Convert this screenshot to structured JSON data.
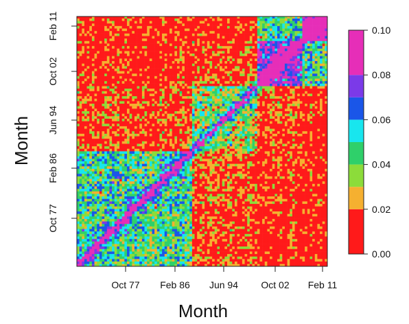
{
  "chart_data": {
    "type": "heatmap",
    "title": "",
    "xlabel": "Month",
    "ylabel": "Month",
    "x_ticks": [
      "Oct 77",
      "Feb 86",
      "Jun 94",
      "Oct 02",
      "Feb 11"
    ],
    "y_ticks": [
      "Oct 77",
      "Feb 86",
      "Jun 94",
      "Oct 02",
      "Feb 11"
    ],
    "color_scale": {
      "range": [
        0,
        0.1
      ],
      "ticks": [
        "0.00",
        "0.02",
        "0.04",
        "0.06",
        "0.08",
        "0.10"
      ],
      "bins": [
        {
          "from": 0.0,
          "to": 0.02,
          "color": "#ff1a1a"
        },
        {
          "from": 0.02,
          "to": 0.03,
          "color": "#f5b030"
        },
        {
          "from": 0.03,
          "to": 0.04,
          "color": "#8cdc3a"
        },
        {
          "from": 0.04,
          "to": 0.05,
          "color": "#2fd06a"
        },
        {
          "from": 0.05,
          "to": 0.06,
          "color": "#18e6ee"
        },
        {
          "from": 0.06,
          "to": 0.07,
          "color": "#1a56e8"
        },
        {
          "from": 0.07,
          "to": 0.08,
          "color": "#7b3ae8"
        },
        {
          "from": 0.08,
          "to": 0.1,
          "color": "#e62eb8"
        }
      ]
    },
    "pattern": {
      "description_values": {
        "diagonal": 0.1,
        "block_1977_1988": 0.045,
        "block_1988_2005": 0.035,
        "block_2005_2011": 0.075,
        "block_2011_2013": 0.09,
        "cross_early_late": 0.008
      }
    },
    "grid": false,
    "legend": "right"
  }
}
